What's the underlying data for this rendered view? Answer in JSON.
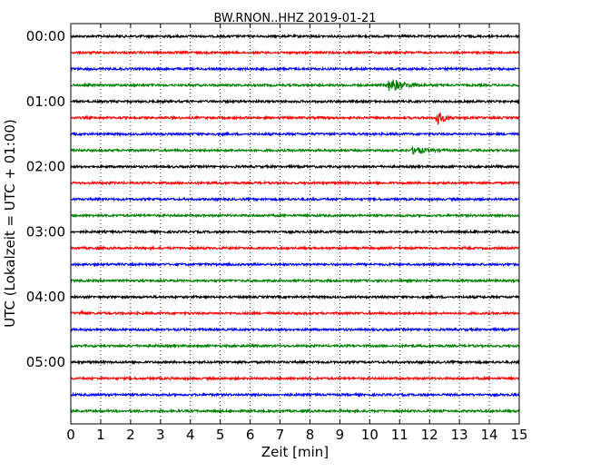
{
  "chart_data": {
    "type": "line",
    "title": "BW.RNON..HHZ 2019-01-21",
    "xlabel": "Zeit  [min]",
    "ylabel": "UTC (Lokalzeit = UTC + 01:00)",
    "xlim": [
      0,
      15
    ],
    "x_ticks": [
      "0",
      "1",
      "2",
      "3",
      "4",
      "5",
      "6",
      "7",
      "8",
      "9",
      "10",
      "11",
      "12",
      "13",
      "14",
      "15"
    ],
    "y_tick_labels": [
      "00:00",
      "01:00",
      "02:00",
      "03:00",
      "04:00",
      "05:00"
    ],
    "grid": "vertical dotted",
    "row_interval_minutes": 15,
    "trace_colors": [
      "#000000",
      "#ff0000",
      "#0000ff",
      "#008000"
    ],
    "rows": [
      {
        "start": "00:00",
        "color": "#000000",
        "events": []
      },
      {
        "start": "00:15",
        "color": "#ff0000",
        "events": []
      },
      {
        "start": "00:30",
        "color": "#0000ff",
        "events": []
      },
      {
        "start": "00:45",
        "color": "#008000",
        "events": [
          {
            "minute": 10.6,
            "amplitude": 1.0,
            "duration": 1.4
          }
        ]
      },
      {
        "start": "01:00",
        "color": "#000000",
        "events": []
      },
      {
        "start": "01:15",
        "color": "#ff0000",
        "events": [
          {
            "minute": 12.2,
            "amplitude": 1.2,
            "duration": 0.7
          }
        ]
      },
      {
        "start": "01:30",
        "color": "#0000ff",
        "events": []
      },
      {
        "start": "01:45",
        "color": "#008000",
        "events": [
          {
            "minute": 11.4,
            "amplitude": 0.6,
            "duration": 1.2
          }
        ]
      },
      {
        "start": "02:00",
        "color": "#000000",
        "events": []
      },
      {
        "start": "02:15",
        "color": "#ff0000",
        "events": []
      },
      {
        "start": "02:30",
        "color": "#0000ff",
        "events": []
      },
      {
        "start": "02:45",
        "color": "#008000",
        "events": []
      },
      {
        "start": "03:00",
        "color": "#000000",
        "events": [
          {
            "minute": 13.5,
            "amplitude": 0.3,
            "duration": 0.3
          }
        ]
      },
      {
        "start": "03:15",
        "color": "#ff0000",
        "events": []
      },
      {
        "start": "03:30",
        "color": "#0000ff",
        "events": []
      },
      {
        "start": "03:45",
        "color": "#008000",
        "events": []
      },
      {
        "start": "04:00",
        "color": "#000000",
        "events": []
      },
      {
        "start": "04:15",
        "color": "#ff0000",
        "events": [
          {
            "minute": 0.3,
            "amplitude": 0.4,
            "duration": 0.3
          }
        ]
      },
      {
        "start": "04:30",
        "color": "#0000ff",
        "events": []
      },
      {
        "start": "04:45",
        "color": "#008000",
        "events": []
      },
      {
        "start": "05:00",
        "color": "#000000",
        "events": []
      },
      {
        "start": "05:15",
        "color": "#ff0000",
        "events": []
      },
      {
        "start": "05:30",
        "color": "#0000ff",
        "events": []
      },
      {
        "start": "05:45",
        "color": "#008000",
        "events": []
      }
    ]
  }
}
